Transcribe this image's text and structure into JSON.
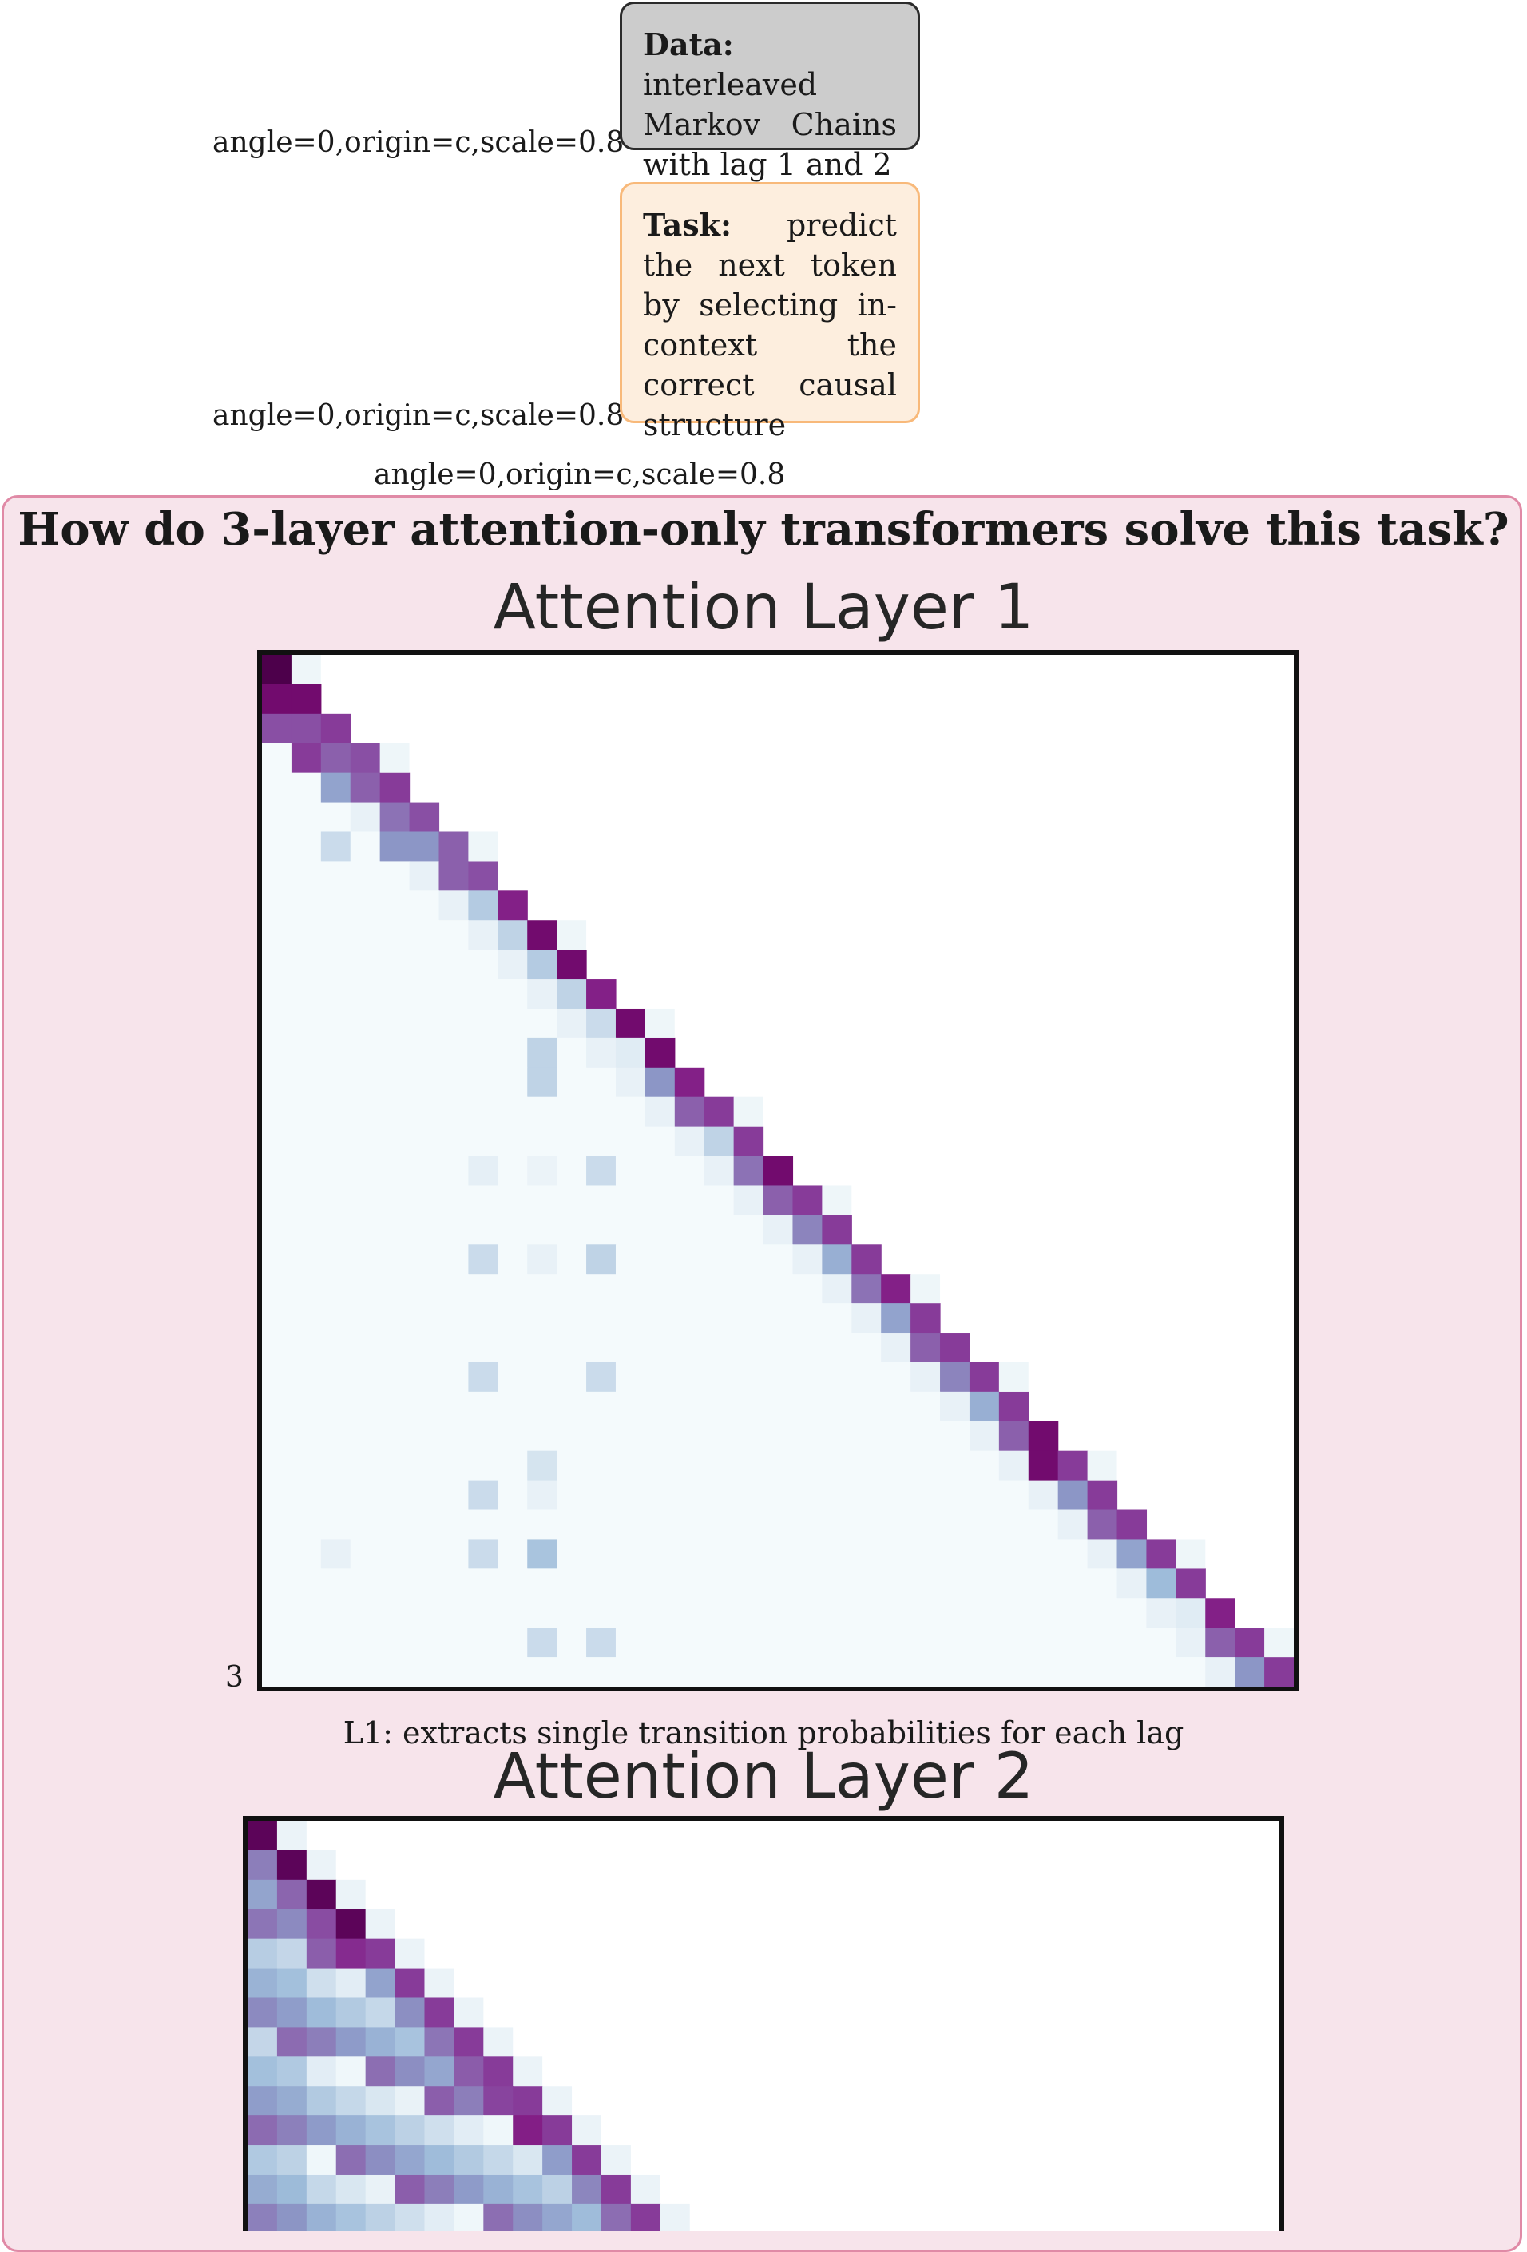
{
  "artifacts": {
    "label1": "angle=0,origin=c,scale=0.8",
    "label2": "angle=0,origin=c,scale=0.8",
    "label3": "angle=0,origin=c,scale=0.8"
  },
  "data_box": {
    "heading": "Data:",
    "text": "interleaved Markov Chains with lag 1 and 2"
  },
  "task_box": {
    "heading": "Task:",
    "text": "predict the next token by selecting in-context the correct causal structure"
  },
  "panel": {
    "title": "How do 3-layer attention-only transformers solve this task?"
  },
  "layer1": {
    "title": "Attention Layer 1",
    "tick_label": "3",
    "caption": "L1: extracts single transition probabilities for each lag"
  },
  "layer2": {
    "title": "Attention Layer 2"
  },
  "chart_data": [
    {
      "type": "heatmap",
      "title": "Attention Layer 1",
      "size": 35,
      "colormap": "BuPu",
      "description_values": "lower-triangular attention; weights are attention intensity 0-1",
      "diagonal": [
        1.0,
        0.95,
        0.85,
        0.8,
        0.85,
        0.8,
        0.75,
        0.8,
        0.9,
        0.95,
        0.95,
        0.9,
        0.95,
        0.95,
        0.9,
        0.85,
        0.85,
        0.95,
        0.85,
        0.85,
        0.85,
        0.9,
        0.85,
        0.85,
        0.85,
        0.85,
        0.95,
        0.85,
        0.85,
        0.85,
        0.85,
        0.85,
        0.9,
        0.85,
        0.85
      ],
      "sub1": [
        0.95,
        0.8,
        0.75,
        0.75,
        0.7,
        0.6,
        0.75,
        0.35,
        0.3,
        0.35,
        0.3,
        0.25,
        0.15,
        0.6,
        0.75,
        0.3,
        0.7,
        0.75,
        0.65,
        0.5,
        0.7,
        0.55,
        0.75,
        0.65,
        0.5,
        0.75,
        0.95,
        0.6,
        0.75,
        0.55,
        0.45,
        0.15,
        0.75,
        0.6
      ],
      "sub2": [
        0.8,
        0.85,
        0.55,
        0.1,
        0.6,
        0.1,
        0.1,
        0.1,
        0.1,
        0.1,
        0.1,
        0.1,
        0.1,
        0.1,
        0.1,
        0.1,
        0.1,
        0.1,
        0.1,
        0.1,
        0.1,
        0.1,
        0.1,
        0.1,
        0.1,
        0.1,
        0.1,
        0.1,
        0.1,
        0.1,
        0.1,
        0.1,
        0.1
      ],
      "extra_cells": [
        [
          6,
          2,
          0.25
        ],
        [
          13,
          9,
          0.3
        ],
        [
          14,
          9,
          0.3
        ],
        [
          17,
          7,
          0.12
        ],
        [
          17,
          9,
          0.08
        ],
        [
          17,
          11,
          0.25
        ],
        [
          20,
          7,
          0.25
        ],
        [
          20,
          9,
          0.1
        ],
        [
          20,
          11,
          0.3
        ],
        [
          24,
          7,
          0.25
        ],
        [
          24,
          11,
          0.25
        ],
        [
          27,
          9,
          0.2
        ],
        [
          28,
          7,
          0.25
        ],
        [
          28,
          9,
          0.1
        ],
        [
          30,
          2,
          0.1
        ],
        [
          30,
          7,
          0.25
        ],
        [
          30,
          9,
          0.4
        ],
        [
          33,
          9,
          0.25
        ],
        [
          33,
          11,
          0.25
        ]
      ],
      "above_cells": [
        [
          1,
          1,
          0.05
        ],
        [
          4,
          4,
          0.05
        ],
        [
          7,
          7,
          0.05
        ]
      ]
    },
    {
      "type": "heatmap",
      "title": "Attention Layer 2",
      "size": 35,
      "colormap": "BuPu",
      "visible_rows": 14
    }
  ]
}
